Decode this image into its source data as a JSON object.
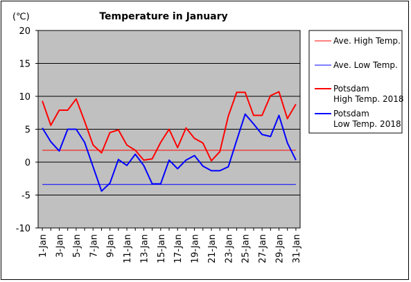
{
  "chart_data": {
    "type": "line",
    "title": "Temperature in January",
    "ylabel": "(℃)",
    "xlabel": "",
    "ylim": [
      -10,
      20
    ],
    "yticks": [
      -10,
      -5,
      0,
      5,
      10,
      15,
      20
    ],
    "grid": true,
    "legend_position": "right",
    "plot_background": "#c0c0c0",
    "categories": [
      "1-Jan",
      "2-Jan",
      "3-Jan",
      "4-Jan",
      "5-Jan",
      "6-Jan",
      "7-Jan",
      "8-Jan",
      "9-Jan",
      "10-Jan",
      "11-Jan",
      "12-Jan",
      "13-Jan",
      "14-Jan",
      "15-Jan",
      "16-Jan",
      "17-Jan",
      "18-Jan",
      "19-Jan",
      "20-Jan",
      "21-Jan",
      "22-Jan",
      "23-Jan",
      "24-Jan",
      "25-Jan",
      "26-Jan",
      "27-Jan",
      "28-Jan",
      "29-Jan",
      "30-Jan",
      "31-Jan"
    ],
    "tick_labels": [
      "1-Jan",
      "3-Jan",
      "5-Jan",
      "7-Jan",
      "9-Jan",
      "11-Jan",
      "13-Jan",
      "15-Jan",
      "17-Jan",
      "19-Jan",
      "21-Jan",
      "23-Jan",
      "25-Jan",
      "27-Jan",
      "29-Jan",
      "31-Jan"
    ],
    "series": [
      {
        "name": "Ave. High Temp.",
        "color": "#ff0000",
        "width": 1,
        "constant": 1.8
      },
      {
        "name": "Ave. Low Temp.",
        "color": "#0000ff",
        "width": 1,
        "constant": -3.4
      },
      {
        "name": "Potsdam\nHigh Temp. 2018",
        "color": "#ff0000",
        "width": 2,
        "values": [
          9.3,
          5.6,
          7.9,
          7.9,
          9.6,
          6.2,
          2.6,
          1.4,
          4.5,
          4.9,
          2.6,
          1.8,
          0.3,
          0.5,
          3.0,
          5.0,
          2.2,
          5.2,
          3.6,
          2.9,
          0.2,
          1.6,
          7.0,
          10.6,
          10.6,
          7.1,
          7.1,
          10.1,
          10.7,
          6.6,
          8.8
        ]
      },
      {
        "name": "Potsdam\nLow Temp. 2018",
        "color": "#0000ff",
        "width": 2,
        "values": [
          5.2,
          3.1,
          1.7,
          5.0,
          5.0,
          3.0,
          -0.7,
          -4.4,
          -3.2,
          0.4,
          -0.5,
          1.2,
          -0.5,
          -3.3,
          -3.3,
          0.3,
          -1.0,
          0.3,
          1.0,
          -0.6,
          -1.3,
          -1.3,
          -0.7,
          3.3,
          7.3,
          5.8,
          4.2,
          3.9,
          7.1,
          2.9,
          0.3
        ]
      }
    ]
  }
}
